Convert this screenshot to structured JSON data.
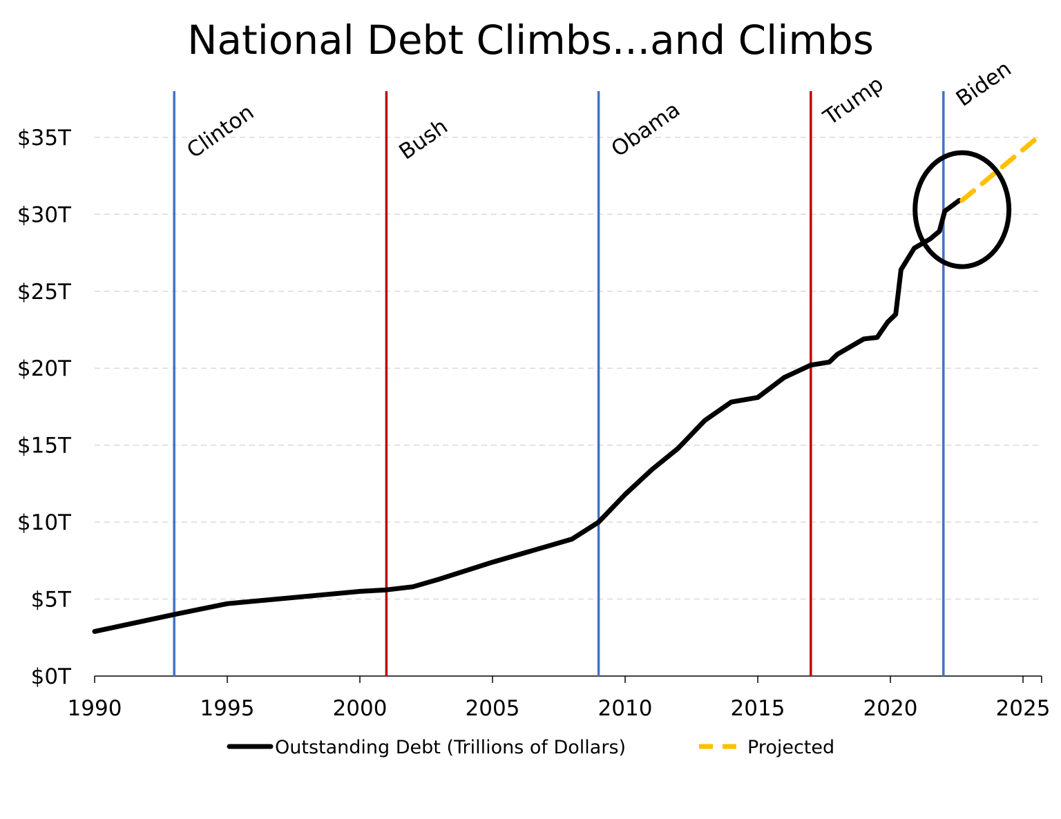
{
  "chart_data": {
    "type": "line",
    "title": "National Debt Climbs...and Climbs",
    "xlabel": "",
    "ylabel": "",
    "xlim": [
      1990,
      2025.7
    ],
    "ylim": [
      0,
      38
    ],
    "x_ticks": [
      1990,
      1995,
      2000,
      2005,
      2010,
      2015,
      2020,
      2025
    ],
    "x_tick_labels": [
      "1990",
      "1995",
      "2000",
      "2005",
      "2010",
      "2015",
      "2020",
      "2025"
    ],
    "y_ticks": [
      0,
      5,
      10,
      15,
      20,
      25,
      30,
      35
    ],
    "y_tick_labels": [
      "$0T",
      "$5T",
      "$10T",
      "$15T",
      "$20T",
      "$25T",
      "$30T",
      "$35T"
    ],
    "grid": "horizontal dashed",
    "legend_position": "bottom",
    "series": [
      {
        "name": "Outstanding Debt (Trillions of Dollars)",
        "color": "#000000",
        "style": "solid",
        "x": [
          1990,
          1993,
          1995,
          2000,
          2001,
          2002,
          2003,
          2005,
          2007,
          2008,
          2009,
          2010,
          2011,
          2012,
          2013,
          2014,
          2015,
          2016,
          2017,
          2017.7,
          2018,
          2019,
          2019.5,
          2019.9,
          2020.2,
          2020.4,
          2020.9,
          2021.5,
          2021.85,
          2022.05,
          2022.6
        ],
        "y": [
          2.9,
          4.0,
          4.7,
          5.5,
          5.6,
          5.8,
          6.3,
          7.4,
          8.4,
          8.9,
          10.0,
          11.8,
          13.4,
          14.8,
          16.6,
          17.8,
          18.1,
          19.4,
          20.2,
          20.4,
          20.9,
          21.9,
          22.0,
          23.0,
          23.5,
          26.4,
          27.8,
          28.4,
          28.9,
          30.2,
          30.9
        ]
      },
      {
        "name": "Projected",
        "color": "#FFC000",
        "style": "dashed",
        "x": [
          2022.7,
          2025.7
        ],
        "y": [
          30.9,
          35.2
        ]
      }
    ],
    "vertical_markers": [
      {
        "label": "Clinton",
        "x": 1993,
        "color": "#4472C4"
      },
      {
        "label": "Bush",
        "x": 2001,
        "color": "#C00000"
      },
      {
        "label": "Obama",
        "x": 2009,
        "color": "#4472C4"
      },
      {
        "label": "Trump",
        "x": 2017,
        "color": "#C00000"
      },
      {
        "label": "Biden",
        "x": 2022,
        "color": "#4472C4"
      }
    ],
    "annotations": [
      {
        "type": "ellipse",
        "center": [
          2022.7,
          30.3
        ],
        "radius_x_years": 1.77,
        "radius_y_trillions": 3.7,
        "color": "#000000"
      }
    ]
  }
}
